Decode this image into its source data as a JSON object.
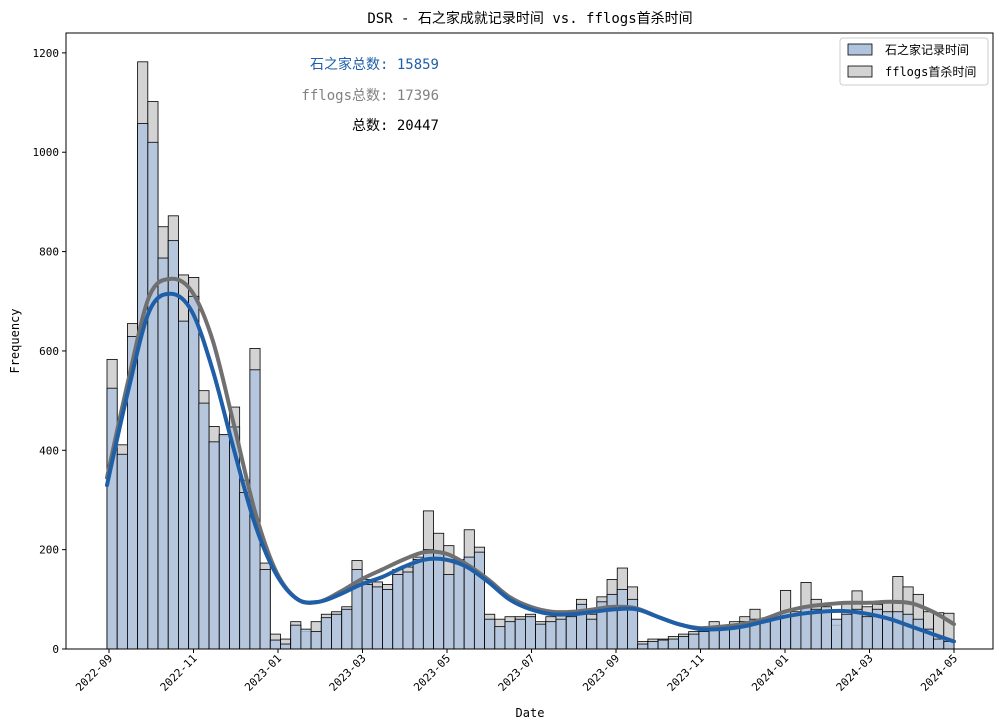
{
  "chart_data": {
    "type": "histogram",
    "title": "DSR - 石之家成就记录时间 vs. fflogs首杀时间",
    "xlabel": "Date",
    "ylabel": "Frequency",
    "ylim": [
      0,
      1240
    ],
    "y_ticks": [
      "0",
      "200",
      "400",
      "600",
      "800",
      "1000",
      "1200"
    ],
    "x_ticks": [
      "2022-09",
      "2022-11",
      "2023-01",
      "2023-03",
      "2023-05",
      "2023-07",
      "2023-09",
      "2023-11",
      "2024-01",
      "2024-03",
      "2024-05"
    ],
    "grid": false,
    "legend_position": "top-right",
    "annotations": [
      {
        "text": "石之家总数: 15859",
        "color": "#1f5fa8"
      },
      {
        "text": "fflogs总数: 17396",
        "color": "#808080"
      },
      {
        "text": "总数: 20447",
        "color": "#000000"
      }
    ],
    "series": [
      {
        "name": "石之家记录时间",
        "fill": "#b0c4de",
        "kde_color": "#1f5fa8",
        "values": [
          525,
          392,
          629,
          1058,
          1020,
          787,
          822,
          660,
          710,
          495,
          417,
          432,
          447,
          315,
          562,
          160,
          18,
          10,
          48,
          40,
          35,
          63,
          70,
          80,
          160,
          130,
          125,
          120,
          150,
          155,
          180,
          200,
          195,
          150,
          180,
          185,
          195,
          60,
          45,
          55,
          60,
          65,
          50,
          55,
          60,
          65,
          90,
          60,
          95,
          110,
          120,
          100,
          10,
          15,
          18,
          20,
          25,
          30,
          35,
          45,
          40,
          45,
          55,
          60,
          55,
          60,
          75,
          70,
          85,
          80,
          75,
          60,
          70,
          80,
          65,
          80,
          75,
          75,
          70,
          60,
          40,
          20,
          15
        ],
        "kde": [
          330,
          520,
          680,
          715,
          680,
          560,
          400,
          250,
          150,
          100,
          95,
          110,
          130,
          145,
          165,
          180,
          180,
          165,
          135,
          100,
          80,
          70,
          70,
          75,
          80,
          80,
          65,
          50,
          40,
          40,
          45,
          55,
          65,
          72,
          76,
          76,
          70,
          60,
          45,
          30,
          15
        ]
      },
      {
        "name": "fflogs首杀时间",
        "fill": "#d3d3d3",
        "kde_color": "#707070",
        "values": [
          583,
          411,
          655,
          1182,
          1102,
          850,
          872,
          753,
          748,
          520,
          448,
          429,
          487,
          340,
          605,
          173,
          30,
          20,
          55,
          35,
          55,
          70,
          75,
          85,
          178,
          140,
          135,
          130,
          160,
          165,
          185,
          278,
          233,
          208,
          170,
          240,
          205,
          70,
          60,
          65,
          65,
          70,
          55,
          65,
          70,
          70,
          100,
          70,
          105,
          140,
          163,
          125,
          15,
          20,
          20,
          25,
          30,
          35,
          40,
          55,
          45,
          55,
          65,
          80,
          60,
          65,
          118,
          75,
          134,
          100,
          85,
          48,
          95,
          117,
          85,
          90,
          95,
          146,
          125,
          110,
          75,
          73,
          72
        ],
        "kde": [
          345,
          540,
          710,
          745,
          720,
          620,
          450,
          275,
          155,
          100,
          95,
          115,
          140,
          160,
          180,
          195,
          192,
          170,
          140,
          105,
          85,
          75,
          75,
          80,
          85,
          82,
          65,
          50,
          42,
          45,
          50,
          60,
          75,
          85,
          90,
          93,
          93,
          95,
          92,
          75,
          50
        ]
      }
    ]
  }
}
